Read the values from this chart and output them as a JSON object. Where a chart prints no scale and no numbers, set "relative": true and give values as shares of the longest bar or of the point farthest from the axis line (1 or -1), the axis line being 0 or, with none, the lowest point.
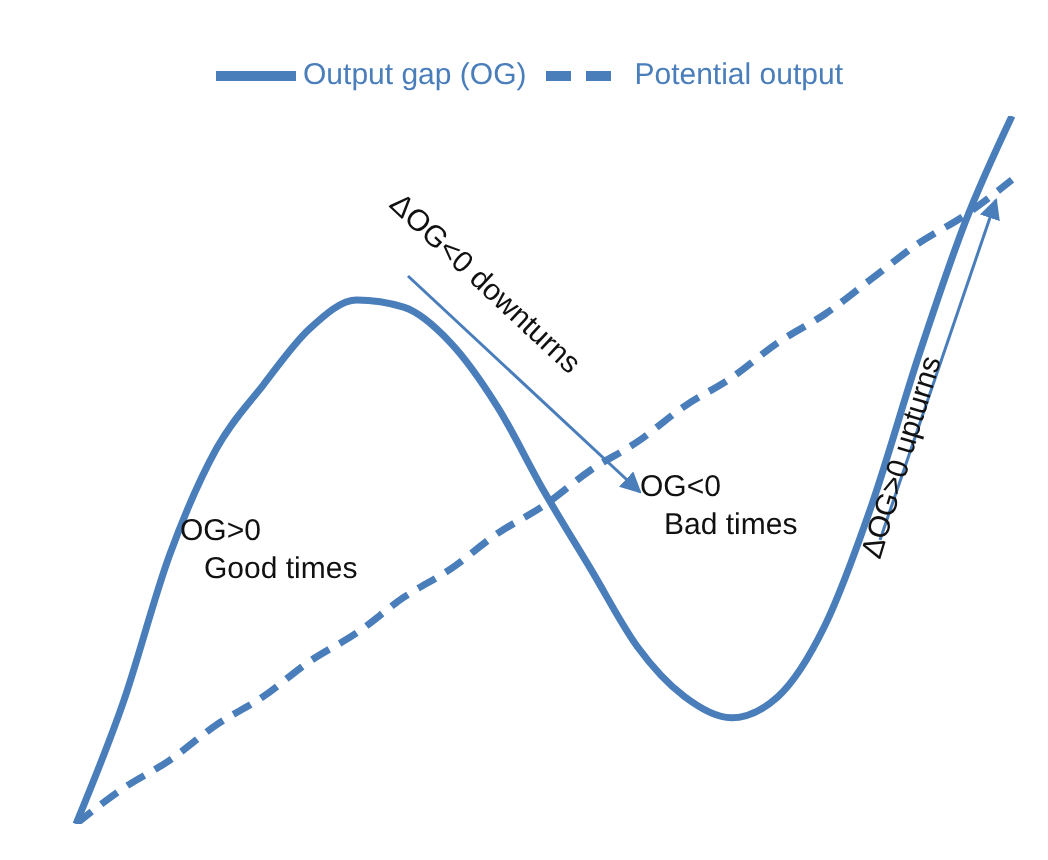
{
  "chart_data": {
    "type": "line",
    "relative": true,
    "legend": "top",
    "grid": false,
    "marker": "none",
    "categories": [
      null,
      null,
      null,
      null,
      null,
      null,
      null,
      null,
      null,
      null,
      null,
      null,
      null,
      null,
      null,
      null,
      null,
      null,
      null,
      null,
      null
    ],
    "series": [
      {
        "name": "Potential output",
        "color": "#4a7ebb",
        "line_style": "dashed",
        "values": [
          0,
          0.05,
          0.09,
          0.14,
          0.18,
          0.23,
          0.27,
          0.32,
          0.36,
          0.41,
          0.45,
          0.5,
          0.54,
          0.59,
          0.63,
          0.68,
          0.72,
          0.77,
          0.82,
          0.86,
          0.91
        ]
      },
      {
        "name": "Output gap (OG)",
        "color": "#4a7ebb",
        "line_style": "solid",
        "values": [
          0,
          0.17,
          0.38,
          0.53,
          0.62,
          0.7,
          0.74,
          0.73,
          0.68,
          0.59,
          0.47,
          0.36,
          0.25,
          0.18,
          0.15,
          0.18,
          0.28,
          0.45,
          0.66,
          0.85,
          1
        ]
      }
    ],
    "annotations": [
      "OG>0\nGood times",
      "OG<0\nBad times",
      "ΔOG<0 downturns",
      "ΔOG>0 upturns"
    ]
  }
}
